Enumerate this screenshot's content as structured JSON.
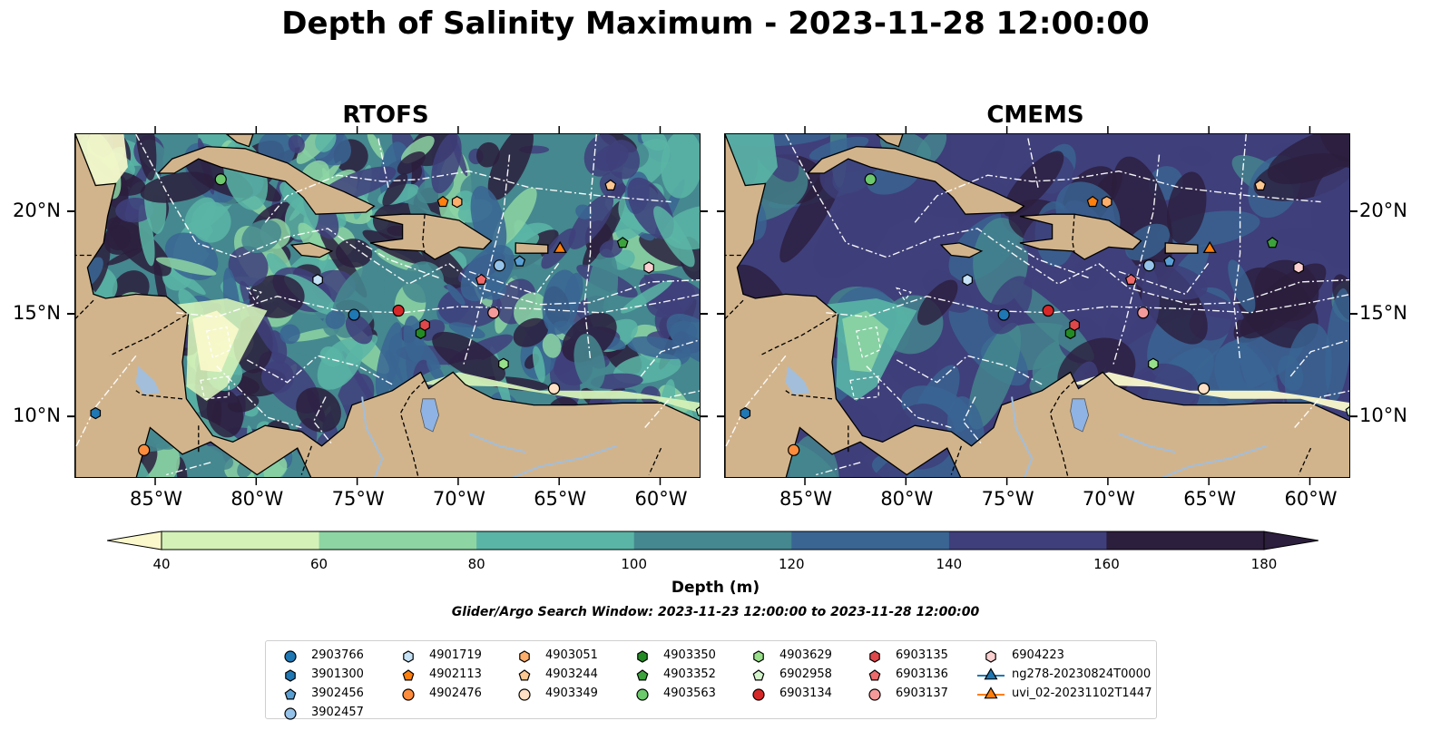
{
  "title": "Depth of Salinity Maximum - 2023-11-28 12:00:00",
  "maps": [
    {
      "title": "RTOFS",
      "style": "rtofs"
    },
    {
      "title": "CMEMS",
      "style": "cmems"
    }
  ],
  "lon_ticks": [
    "85°W",
    "80°W",
    "75°W",
    "70°W",
    "65°W",
    "60°W"
  ],
  "lon_values": [
    -85,
    -80,
    -75,
    -70,
    -65,
    -60
  ],
  "lat_ticks": [
    "20°N",
    "15°N",
    "10°N"
  ],
  "lat_values": [
    20,
    15,
    10
  ],
  "extent": {
    "lon_min": -89,
    "lon_max": -58,
    "lat_min": 7,
    "lat_max": 23.8
  },
  "colorbar": {
    "label": "Depth (m)",
    "ticks": [
      "40",
      "60",
      "80",
      "100",
      "120",
      "140",
      "160",
      "180"
    ],
    "colors": [
      "#d4f1b8",
      "#8dd5a3",
      "#5ab5a6",
      "#45888f",
      "#3a6593",
      "#3f3f7b",
      "#2c1e3d"
    ],
    "under_color": "#fbf9cc",
    "over_color": "#2c1e3d",
    "extend": "both"
  },
  "colors": {
    "land": "#d2b48c",
    "lakes": "#8eb3e4",
    "rivers": "#a2bedb"
  },
  "search_window": "Glider/Argo Search Window: 2023-11-23 12:00:00 to 2023-11-28 12:00:00",
  "legend": [
    {
      "label": "2903766",
      "marker": "circle",
      "color": "#1f77b4"
    },
    {
      "label": "3901300",
      "marker": "hexagon",
      "color": "#1f77b4"
    },
    {
      "label": "3902456",
      "marker": "pentagon",
      "color": "#5a9fd4"
    },
    {
      "label": "3902457",
      "marker": "circle",
      "color": "#95c2e8"
    },
    {
      "label": "4901719",
      "marker": "hexagon",
      "color": "#c6e2f7"
    },
    {
      "label": "4902113",
      "marker": "pentagon",
      "color": "#ff7f0e"
    },
    {
      "label": "4902476",
      "marker": "circle",
      "color": "#fd8d3c"
    },
    {
      "label": "4903051",
      "marker": "hexagon",
      "color": "#fdae6b"
    },
    {
      "label": "4903244",
      "marker": "pentagon",
      "color": "#fdc791"
    },
    {
      "label": "4903349",
      "marker": "circle",
      "color": "#fde0c5"
    },
    {
      "label": "4903350",
      "marker": "hexagon",
      "color": "#238b23"
    },
    {
      "label": "4903352",
      "marker": "pentagon",
      "color": "#3ca33c"
    },
    {
      "label": "4903563",
      "marker": "circle",
      "color": "#6cc96c"
    },
    {
      "label": "4903629",
      "marker": "hexagon",
      "color": "#98df8a"
    },
    {
      "label": "6902958",
      "marker": "pentagon",
      "color": "#d4f5cc"
    },
    {
      "label": "6903134",
      "marker": "circle",
      "color": "#d62728"
    },
    {
      "label": "6903135",
      "marker": "hexagon",
      "color": "#e0474a"
    },
    {
      "label": "6903136",
      "marker": "pentagon",
      "color": "#ef6b6b"
    },
    {
      "label": "6903137",
      "marker": "circle",
      "color": "#f59a9a"
    },
    {
      "label": "6904223",
      "marker": "hexagon",
      "color": "#fcd0d0"
    },
    {
      "label": "ng278-20230824T0000",
      "marker": "triangle-line",
      "color": "#1f77b4"
    },
    {
      "label": "uvi_02-20231102T1447",
      "marker": "triangle-line",
      "color": "#ff7f0e"
    }
  ],
  "observations": [
    {
      "id": "2903766",
      "lon": -75.2,
      "lat": 15.0
    },
    {
      "id": "3901300",
      "lon": -88.0,
      "lat": 10.2
    },
    {
      "id": "3902456",
      "lon": -67.0,
      "lat": 17.6
    },
    {
      "id": "3902457",
      "lon": -68.0,
      "lat": 17.4
    },
    {
      "id": "4901719",
      "lon": -77.0,
      "lat": 16.7
    },
    {
      "id": "4902113",
      "lon": -70.8,
      "lat": 20.5
    },
    {
      "id": "4902476",
      "lon": -85.6,
      "lat": 8.4
    },
    {
      "id": "4903051",
      "lon": -70.1,
      "lat": 20.5
    },
    {
      "id": "4903244",
      "lon": -62.5,
      "lat": 21.3
    },
    {
      "id": "4903349",
      "lon": -65.3,
      "lat": 11.4
    },
    {
      "id": "4903350",
      "lon": -71.9,
      "lat": 14.1
    },
    {
      "id": "4903352",
      "lon": -61.9,
      "lat": 18.5
    },
    {
      "id": "4903563",
      "lon": -81.8,
      "lat": 21.6
    },
    {
      "id": "4903629",
      "lon": -67.8,
      "lat": 12.6
    },
    {
      "id": "6902958",
      "lon": -58.0,
      "lat": 10.3
    },
    {
      "id": "6903134",
      "lon": -73.0,
      "lat": 15.2
    },
    {
      "id": "6903135",
      "lon": -71.7,
      "lat": 14.5
    },
    {
      "id": "6903136",
      "lon": -68.9,
      "lat": 16.7
    },
    {
      "id": "6903137",
      "lon": -68.3,
      "lat": 15.1
    },
    {
      "id": "6904223",
      "lon": -60.6,
      "lat": 17.3
    },
    {
      "id": "ng278-20230824T0000",
      "lon": -65.0,
      "lat": 18.2
    },
    {
      "id": "uvi_02-20231102T1447",
      "lon": -65.0,
      "lat": 18.2
    }
  ]
}
